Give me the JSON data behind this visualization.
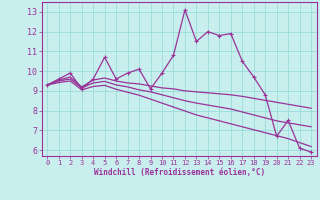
{
  "xlabel": "Windchill (Refroidissement éolien,°C)",
  "bg_color": "#c8eeee",
  "grid_color": "#90d8d8",
  "line_color": "#993399",
  "axis_color": "#993399",
  "xlim": [
    -0.5,
    23.5
  ],
  "ylim": [
    5.7,
    13.5
  ],
  "xticks": [
    0,
    1,
    2,
    3,
    4,
    5,
    6,
    7,
    8,
    9,
    10,
    11,
    12,
    13,
    14,
    15,
    16,
    17,
    18,
    19,
    20,
    21,
    22,
    23
  ],
  "yticks": [
    6,
    7,
    8,
    9,
    10,
    11,
    12,
    13
  ],
  "main_line": [
    9.3,
    9.6,
    9.9,
    9.1,
    9.6,
    10.7,
    9.6,
    9.9,
    10.1,
    9.1,
    9.9,
    10.8,
    13.1,
    11.5,
    12.0,
    11.8,
    11.9,
    10.5,
    9.7,
    8.8,
    6.7,
    7.5,
    6.1,
    5.9
  ],
  "trend1": [
    9.3,
    9.55,
    9.7,
    9.2,
    9.55,
    9.65,
    9.5,
    9.4,
    9.35,
    9.25,
    9.15,
    9.1,
    9.0,
    8.95,
    8.9,
    8.85,
    8.8,
    8.72,
    8.62,
    8.52,
    8.42,
    8.32,
    8.22,
    8.12
  ],
  "trend2": [
    9.3,
    9.5,
    9.6,
    9.15,
    9.4,
    9.48,
    9.3,
    9.2,
    9.05,
    8.95,
    8.8,
    8.65,
    8.5,
    8.38,
    8.28,
    8.18,
    8.08,
    7.93,
    7.78,
    7.63,
    7.48,
    7.38,
    7.28,
    7.18
  ],
  "trend3": [
    9.3,
    9.42,
    9.5,
    9.05,
    9.22,
    9.28,
    9.08,
    8.93,
    8.78,
    8.58,
    8.38,
    8.18,
    7.98,
    7.78,
    7.63,
    7.48,
    7.33,
    7.18,
    7.03,
    6.88,
    6.73,
    6.58,
    6.38,
    6.18
  ]
}
